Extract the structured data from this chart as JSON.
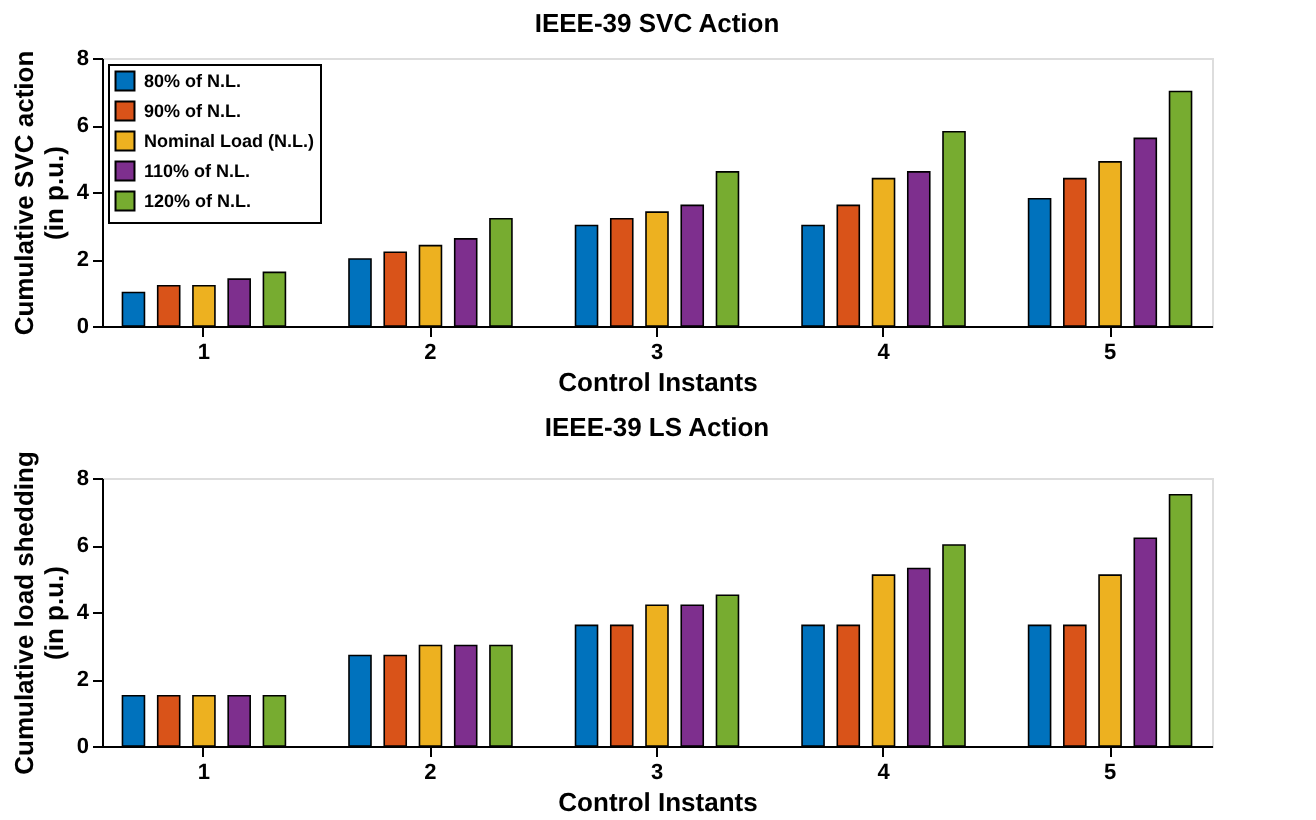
{
  "chart_data": [
    {
      "type": "bar",
      "title": "IEEE-39 SVC Action",
      "xlabel": "Control Instants",
      "ylabel": "Cumulative SVC action\n(in p.u.)",
      "categories": [
        "1",
        "2",
        "3",
        "4",
        "5"
      ],
      "ylim": [
        0,
        8
      ],
      "yticks": [
        0,
        2,
        4,
        6,
        8
      ],
      "grid": false,
      "legend": "top left",
      "series": [
        {
          "name": "80% of N.L.",
          "color": "#0072bd",
          "values": [
            1.0,
            2.0,
            3.0,
            3.0,
            3.8
          ]
        },
        {
          "name": "90% of N.L.",
          "color": "#d95319",
          "values": [
            1.2,
            2.2,
            3.2,
            3.6,
            4.4
          ]
        },
        {
          "name": "Nominal Load (N.L.)",
          "color": "#edb120",
          "values": [
            1.2,
            2.4,
            3.4,
            4.4,
            4.9
          ]
        },
        {
          "name": "110% of N.L.",
          "color": "#7e2f8e",
          "values": [
            1.4,
            2.6,
            3.6,
            4.6,
            5.6
          ]
        },
        {
          "name": "120% of N.L.",
          "color": "#77ac30",
          "values": [
            1.6,
            3.2,
            4.6,
            5.8,
            7.0
          ]
        }
      ]
    },
    {
      "type": "bar",
      "title": "IEEE-39 LS Action",
      "xlabel": "Control Instants",
      "ylabel": "Cumulative load shedding\n(in p.u.)",
      "categories": [
        "1",
        "2",
        "3",
        "4",
        "5"
      ],
      "ylim": [
        0,
        8
      ],
      "yticks": [
        0,
        2,
        4,
        6,
        8
      ],
      "grid": false,
      "legend": "top left",
      "series": [
        {
          "name": "80% of N.L.",
          "color": "#0072bd",
          "values": [
            1.5,
            2.7,
            3.6,
            3.6,
            3.6
          ]
        },
        {
          "name": "90% of N.L.",
          "color": "#d95319",
          "values": [
            1.5,
            2.7,
            3.6,
            3.6,
            3.6
          ]
        },
        {
          "name": "Nominal Load (N.L.)",
          "color": "#edb120",
          "values": [
            1.5,
            3.0,
            4.2,
            5.1,
            5.1
          ]
        },
        {
          "name": "110% of N.L.",
          "color": "#7e2f8e",
          "values": [
            1.5,
            3.0,
            4.2,
            5.3,
            6.2
          ]
        },
        {
          "name": "120% of N.L.",
          "color": "#77ac30",
          "values": [
            1.5,
            3.0,
            4.5,
            6.0,
            7.5
          ]
        }
      ]
    }
  ]
}
